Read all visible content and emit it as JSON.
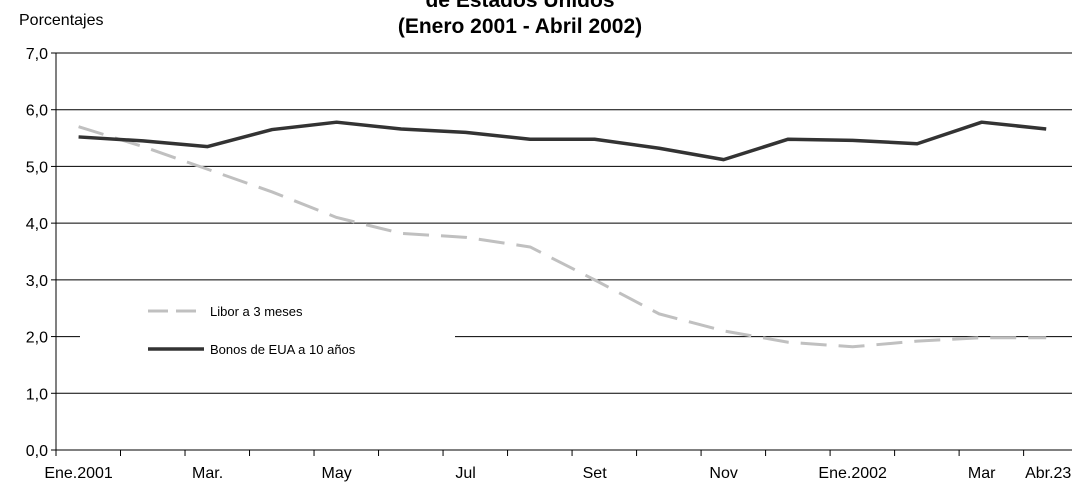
{
  "chart_data": {
    "type": "line",
    "title_lines": [
      "de Estados Unidos",
      "(Enero 2001 - Abril 2002)"
    ],
    "ylabel": "Porcentajes",
    "xlabel": "",
    "ylim": [
      0,
      7
    ],
    "y_ticks": [
      "0,0",
      "1,0",
      "2,0",
      "3,0",
      "4,0",
      "5,0",
      "6,0",
      "7,0"
    ],
    "x_tick_labels": [
      "Ene.2001",
      "Mar.",
      "May",
      "Jul",
      "Set",
      "Nov",
      "Ene.2002",
      "Mar",
      "Abr.23"
    ],
    "x_tick_positions": [
      0,
      2,
      4,
      6,
      8,
      10,
      12,
      14,
      15
    ],
    "grid": "horizontal",
    "legend_position": "left",
    "series": [
      {
        "name": "Libor a 3 meses",
        "color": "#c0c0c0",
        "style": "dashed",
        "x": [
          0,
          1,
          2,
          3,
          4,
          5,
          6,
          7,
          8,
          9,
          10,
          11,
          12,
          13,
          14,
          15
        ],
        "values": [
          5.7,
          5.35,
          4.95,
          4.55,
          4.1,
          3.82,
          3.75,
          3.58,
          3.0,
          2.4,
          2.1,
          1.9,
          1.82,
          1.92,
          1.98,
          1.98
        ]
      },
      {
        "name": "Bonos de EUA a 10 años",
        "color": "#333333",
        "style": "solid",
        "x": [
          0,
          1,
          2,
          3,
          4,
          5,
          6,
          7,
          8,
          9,
          10,
          11,
          12,
          13,
          14,
          15
        ],
        "values": [
          5.52,
          5.45,
          5.35,
          5.65,
          5.78,
          5.66,
          5.6,
          5.48,
          5.48,
          5.32,
          5.12,
          5.48,
          5.46,
          5.4,
          5.78,
          5.66
        ]
      }
    ]
  }
}
